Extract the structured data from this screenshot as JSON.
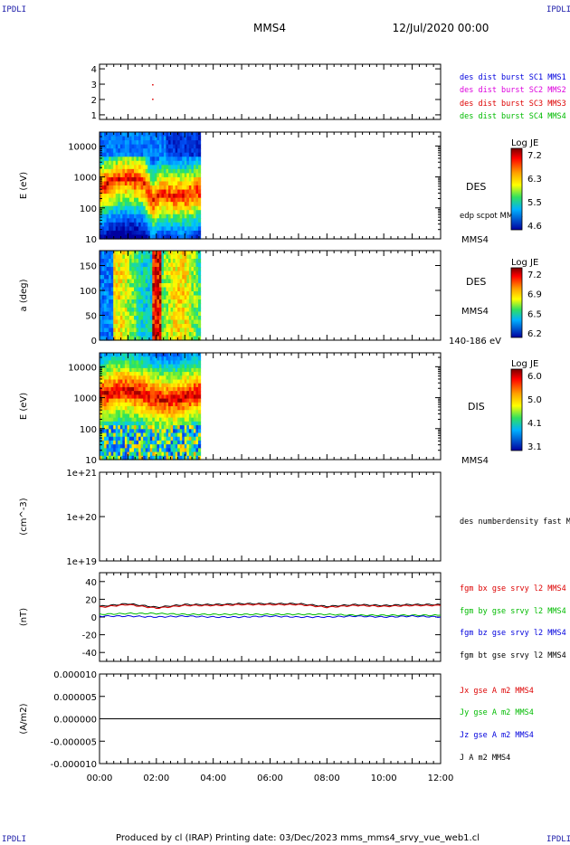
{
  "header": {
    "corner_label": "IPDLI",
    "spacecraft": "MMS4",
    "date": "12/Jul/2020 00:00"
  },
  "footer": {
    "text": "Produced by cl (IRAP)   Printing date: 03/Dec/2023   mms_mms4_srvy_vue_web1.cl"
  },
  "time_axis": {
    "ticks": [
      "00:00",
      "02:00",
      "04:00",
      "06:00",
      "08:00",
      "10:00",
      "12:00"
    ],
    "range_hours": [
      0,
      12
    ],
    "data_end_hours": 3.55
  },
  "panels": [
    {
      "id": "spacecraft",
      "ylabel": "",
      "yticks": [
        "1",
        "2",
        "3",
        "4"
      ],
      "ylim": [
        0.7,
        4.3
      ],
      "legend": [
        {
          "text": "des dist burst SC1 MMS1",
          "color": "#0000dd"
        },
        {
          "text": "des dist burst SC2 MMS2",
          "color": "#dd00dd"
        },
        {
          "text": "des dist burst SC3 MMS3",
          "color": "#dd0000"
        },
        {
          "text": "des dist burst SC4 MMS4",
          "color": "#00bb00"
        }
      ]
    },
    {
      "id": "des-energy",
      "ylabel": "E (eV)",
      "yticks": [
        "10",
        "100",
        "1000",
        "10000"
      ],
      "right_text": "DES",
      "right_sub": "edp scpot MMS4",
      "bottom_right": "MMS4",
      "colorbar": {
        "title": "Log JE",
        "labels": [
          "7.2",
          "6.3",
          "5.5",
          "4.6"
        ]
      }
    },
    {
      "id": "des-pitch",
      "ylabel": "a (deg)",
      "yticks": [
        "0",
        "50",
        "100",
        "150"
      ],
      "ylim": [
        0,
        180
      ],
      "right_text": "DES",
      "right_sub": "MMS4",
      "bottom_right": "140-186 eV",
      "colorbar": {
        "title": "Log JE",
        "labels": [
          "7.2",
          "6.9",
          "6.5",
          "6.2"
        ]
      }
    },
    {
      "id": "dis-energy",
      "ylabel": "E (eV)",
      "yticks": [
        "10",
        "100",
        "1000",
        "10000"
      ],
      "right_text": "DIS",
      "bottom_right": "MMS4",
      "colorbar": {
        "title": "Log JE",
        "labels": [
          "6.0",
          "5.0",
          "4.1",
          "3.1"
        ]
      }
    },
    {
      "id": "density",
      "ylabel": "(cm^-3)",
      "yticks": [
        "1e+19",
        "1e+20",
        "1e+21"
      ],
      "legend": [
        {
          "text": "des numberdensity fast M",
          "color": "#000000"
        }
      ]
    },
    {
      "id": "magnetic",
      "ylabel": "(nT)",
      "yticks": [
        "-40",
        "-20",
        "0",
        "20",
        "40"
      ],
      "ylim": [
        -50,
        50
      ],
      "legend": [
        {
          "text": "fgm bx gse srvy l2 MMS4",
          "color": "#dd0000"
        },
        {
          "text": "fgm by gse srvy l2 MMS4",
          "color": "#00bb00"
        },
        {
          "text": "fgm bz gse srvy l2 MMS4",
          "color": "#0000dd"
        },
        {
          "text": "fgm bt gse srvy l2 MMS4",
          "color": "#000000"
        }
      ]
    },
    {
      "id": "current",
      "ylabel": "(A/m2)",
      "yticks": [
        "-0.000010",
        "-0.000005",
        "0.000000",
        "0.000005",
        "0.000010"
      ],
      "ylim": [
        -1e-05,
        1e-05
      ],
      "legend": [
        {
          "text": "Jx gse A m2 MMS4",
          "color": "#dd0000"
        },
        {
          "text": "Jy gse A m2 MMS4",
          "color": "#00bb00"
        },
        {
          "text": "Jz gse A m2 MMS4",
          "color": "#0000dd"
        },
        {
          "text": "J A m2 MMS4",
          "color": "#000000"
        }
      ]
    }
  ],
  "chart_data": {
    "type": "line",
    "title": "MMS4",
    "xlabel": "",
    "ylabel": "(nT)",
    "ylim": [
      -50,
      50
    ],
    "x": [
      "00:00",
      "01:00",
      "02:00",
      "03:00",
      "04:00",
      "05:00",
      "06:00",
      "07:00",
      "08:00",
      "09:00",
      "10:00",
      "11:00",
      "12:00"
    ],
    "series": [
      {
        "name": "fgm bt gse srvy l2 MMS4",
        "values": [
          12,
          15,
          11,
          14,
          14,
          15,
          15,
          15,
          12,
          14,
          13,
          14,
          14
        ]
      },
      {
        "name": "fgm bx gse srvy l2 MMS4",
        "values": [
          11,
          14,
          10,
          13,
          13,
          14,
          14,
          14,
          11,
          13,
          12,
          13,
          13
        ]
      },
      {
        "name": "fgm by gse srvy l2 MMS4",
        "values": [
          3,
          4,
          4,
          3,
          3,
          3,
          3,
          3,
          3,
          2,
          2,
          2,
          2
        ]
      },
      {
        "name": "fgm bz gse srvy l2 MMS4",
        "values": [
          1,
          1,
          0,
          1,
          0,
          0,
          1,
          0,
          0,
          1,
          0,
          1,
          0
        ]
      }
    ]
  }
}
